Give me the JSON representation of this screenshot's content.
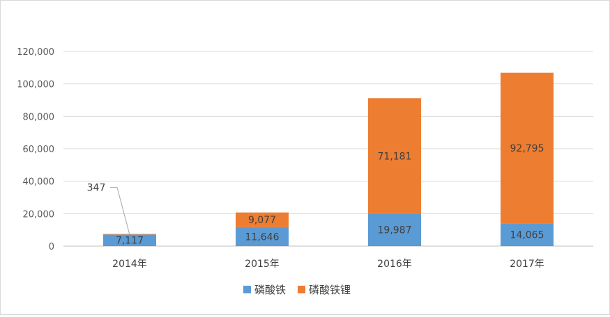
{
  "chart_data": {
    "type": "bar",
    "stacked": true,
    "title": "",
    "xlabel": "",
    "ylabel": "",
    "categories": [
      "2014年",
      "2015年",
      "2016年",
      "2017年"
    ],
    "series": [
      {
        "name": "磷酸铁",
        "color": "#5b9bd5",
        "values": [
          7117,
          11646,
          19987,
          14065
        ],
        "labels": [
          "7,117",
          "11,646",
          "19,987",
          "14,065"
        ]
      },
      {
        "name": "磷酸铁锂",
        "color": "#ed7d31",
        "values": [
          347,
          9077,
          71181,
          92795
        ],
        "labels": [
          "347",
          "9,077",
          "71,181",
          "92,795"
        ]
      }
    ],
    "ylim": [
      0,
      120000
    ],
    "yticks": [
      0,
      20000,
      40000,
      60000,
      80000,
      100000,
      120000
    ],
    "ytick_labels": [
      "0",
      "20,000",
      "40,000",
      "60,000",
      "80,000",
      "100,000",
      "120,000"
    ],
    "grid": true,
    "legend": "bottom"
  }
}
